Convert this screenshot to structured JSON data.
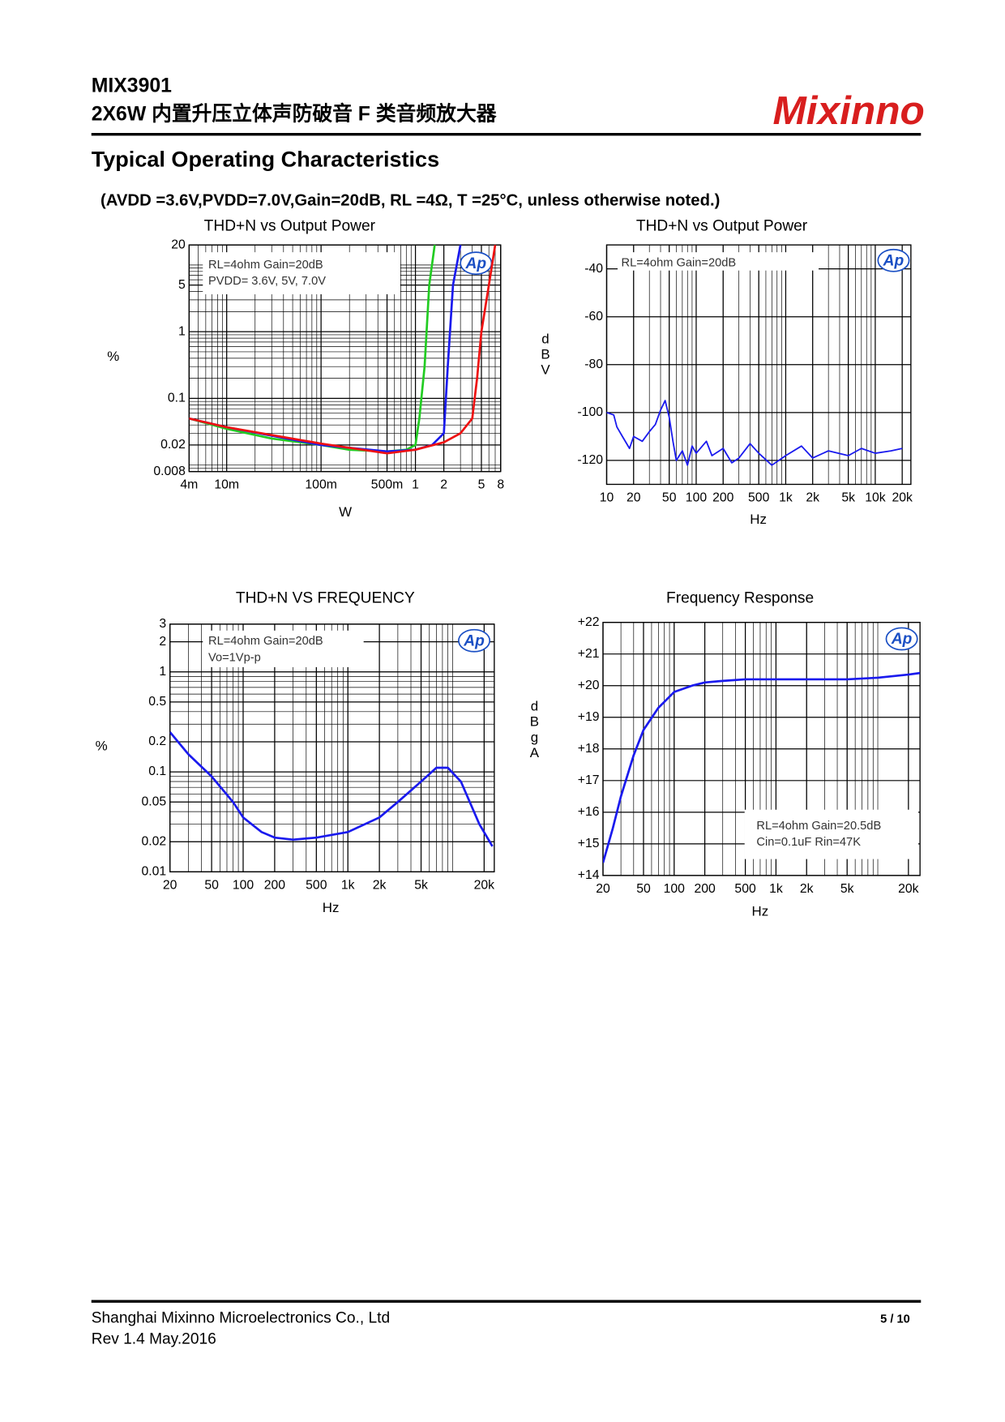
{
  "header": {
    "part": "MIX3901",
    "subtitle": "2X6W  内置升压立体声防破音 F 类音频放大器",
    "logo": "Mixinno"
  },
  "section": {
    "title": "Typical Operating Characteristics",
    "conditions": "(AVDD =3.6V,PVDD=7.0V,Gain=20dB, RL =4Ω, T =25°C, unless otherwise noted.)"
  },
  "chart_data": [
    {
      "type": "line",
      "title": "THD+N vs Output Power",
      "x_label": "W",
      "y_label": "%",
      "logo": "Ap",
      "xscale": "log",
      "yscale": "log",
      "grid": true,
      "annotations": [
        "RL=4ohm Gain=20dB",
        "PVDD= 3.6V, 5V, 7.0V"
      ],
      "xlim": [
        0.004,
        8
      ],
      "ylim": [
        0.008,
        20
      ],
      "xticks": [
        {
          "value": 0.004,
          "label": "4m"
        },
        {
          "value": 0.01,
          "label": "10m"
        },
        {
          "value": 0.1,
          "label": "100m"
        },
        {
          "value": 0.5,
          "label": "500m"
        },
        1,
        2,
        5,
        8
      ],
      "yticks": [
        0.008,
        0.02,
        0.1,
        1,
        5,
        20
      ],
      "series": [
        {
          "color": "#22cc22",
          "x": [
            0.004,
            0.01,
            0.03,
            0.1,
            0.2,
            0.5,
            0.8,
            1.0,
            1.1,
            1.25,
            1.4,
            1.6
          ],
          "values": [
            0.05,
            0.035,
            0.025,
            0.02,
            0.017,
            0.016,
            0.017,
            0.02,
            0.05,
            0.3,
            5,
            20
          ]
        },
        {
          "color": "#1a1aee",
          "x": [
            0.004,
            0.01,
            0.1,
            0.5,
            1,
            1.5,
            2,
            2.2,
            2.5,
            3
          ],
          "values": [
            0.05,
            0.037,
            0.02,
            0.016,
            0.017,
            0.02,
            0.03,
            0.3,
            5,
            20
          ]
        },
        {
          "color": "#ee1111",
          "x": [
            0.004,
            0.01,
            0.1,
            0.5,
            1,
            2,
            3,
            4,
            4.5,
            5,
            6,
            7
          ],
          "values": [
            0.05,
            0.037,
            0.021,
            0.015,
            0.017,
            0.022,
            0.03,
            0.05,
            0.2,
            1,
            5,
            20
          ]
        }
      ]
    },
    {
      "type": "line",
      "title": "THD+N vs Output Power",
      "x_label": "Hz",
      "y_label": "dBV",
      "logo": "Ap",
      "xscale": "log",
      "yscale": "linear",
      "grid": true,
      "annotations": [
        "RL=4ohm Gain=20dB"
      ],
      "xlim": [
        10,
        25000
      ],
      "ylim": [
        -130,
        -30
      ],
      "xticks": [
        10,
        20,
        50,
        100,
        200,
        500,
        {
          "value": 1000,
          "label": "1k"
        },
        {
          "value": 2000,
          "label": "2k"
        },
        {
          "value": 5000,
          "label": "5k"
        },
        {
          "value": 10000,
          "label": "10k"
        },
        {
          "value": 20000,
          "label": "20k"
        }
      ],
      "yticks": [
        -40,
        -60,
        -80,
        -100,
        -120
      ],
      "series": [
        {
          "color": "#1a1aee",
          "x": [
            10,
            12,
            13,
            15,
            18,
            20,
            25,
            30,
            35,
            40,
            45,
            50,
            55,
            60,
            70,
            80,
            90,
            100,
            130,
            150,
            200,
            250,
            300,
            400,
            500,
            700,
            1000,
            1500,
            2000,
            3000,
            5000,
            7000,
            10000,
            15000,
            20000
          ],
          "values": [
            -100,
            -101,
            -106,
            -110,
            -115,
            -110,
            -112,
            -108,
            -105,
            -99,
            -95,
            -102,
            -112,
            -120,
            -116,
            -122,
            -114,
            -117,
            -112,
            -118,
            -115,
            -121,
            -119,
            -113,
            -117,
            -122,
            -118,
            -114,
            -119,
            -116,
            -118,
            -115,
            -117,
            -116,
            -115
          ]
        }
      ]
    },
    {
      "type": "line",
      "title": "THD+N VS FREQUENCY",
      "x_label": "Hz",
      "y_label": "%",
      "logo": "Ap",
      "xscale": "log",
      "yscale": "log",
      "grid": true,
      "annotations": [
        "RL=4ohm Gain=20dB",
        "Vo=1Vp-p"
      ],
      "xlim": [
        20,
        25000
      ],
      "ylim": [
        0.01,
        3
      ],
      "xticks": [
        20,
        50,
        100,
        200,
        500,
        {
          "value": 1000,
          "label": "1k"
        },
        {
          "value": 2000,
          "label": "2k"
        },
        {
          "value": 5000,
          "label": "5k"
        },
        {
          "value": 20000,
          "label": "20k"
        }
      ],
      "yticks": [
        0.01,
        0.02,
        0.05,
        0.1,
        0.2,
        0.5,
        1,
        2,
        3
      ],
      "series": [
        {
          "color": "#1a1aee",
          "x": [
            20,
            30,
            50,
            80,
            100,
            150,
            200,
            300,
            500,
            1000,
            2000,
            3000,
            5000,
            7000,
            9000,
            12000,
            18000,
            24000
          ],
          "values": [
            0.25,
            0.15,
            0.09,
            0.05,
            0.035,
            0.025,
            0.022,
            0.021,
            0.022,
            0.025,
            0.035,
            0.05,
            0.08,
            0.11,
            0.11,
            0.08,
            0.03,
            0.018
          ]
        }
      ]
    },
    {
      "type": "line",
      "title": "Frequency Response",
      "x_label": "Hz",
      "y_label": "dBgA",
      "logo": "Ap",
      "xscale": "log",
      "yscale": "linear",
      "grid": true,
      "annotations": [
        "RL=4ohm Gain=20.5dB",
        "Cin=0.1uF Rin=47K"
      ],
      "xlim": [
        20,
        26000
      ],
      "ylim": [
        14,
        22
      ],
      "xticks": [
        20,
        50,
        100,
        200,
        500,
        {
          "value": 1000,
          "label": "1k"
        },
        {
          "value": 2000,
          "label": "2k"
        },
        {
          "value": 5000,
          "label": "5k"
        },
        {
          "value": 20000,
          "label": "20k"
        }
      ],
      "yticks": [
        {
          "value": 14,
          "label": "+14"
        },
        {
          "value": 15,
          "label": "+15"
        },
        {
          "value": 16,
          "label": "+16"
        },
        {
          "value": 17,
          "label": "+17"
        },
        {
          "value": 18,
          "label": "+18"
        },
        {
          "value": 19,
          "label": "+19"
        },
        {
          "value": 20,
          "label": "+20"
        },
        {
          "value": 21,
          "label": "+21"
        },
        {
          "value": 22,
          "label": "+22"
        }
      ],
      "series": [
        {
          "color": "#1a1aee",
          "x": [
            20,
            25,
            30,
            40,
            50,
            70,
            100,
            150,
            200,
            300,
            500,
            1000,
            2000,
            5000,
            10000,
            20000,
            26000
          ],
          "values": [
            14.4,
            15.5,
            16.5,
            17.8,
            18.6,
            19.3,
            19.8,
            20.0,
            20.1,
            20.15,
            20.2,
            20.2,
            20.2,
            20.2,
            20.25,
            20.35,
            20.4
          ]
        }
      ]
    }
  ],
  "footer": {
    "company": "Shanghai Mixinno Microelectronics Co., Ltd",
    "revision": "Rev 1.4 May.2016",
    "page": "5 / 10"
  }
}
